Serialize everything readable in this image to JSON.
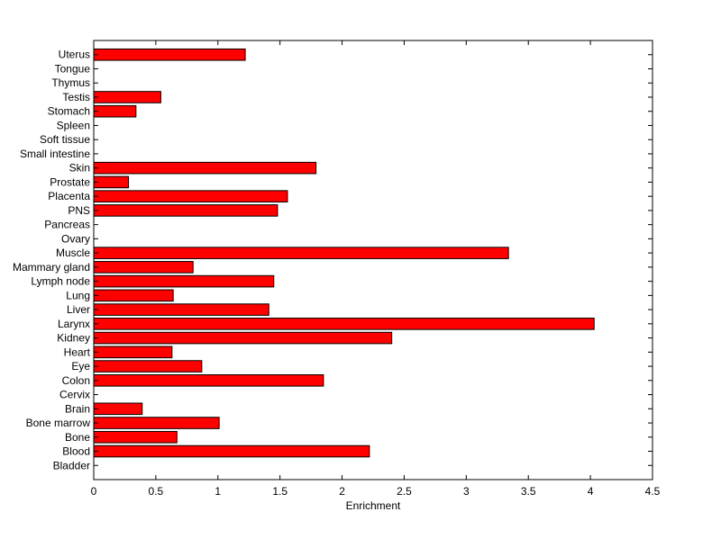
{
  "chart_data": {
    "type": "bar",
    "orientation": "horizontal",
    "title": "",
    "xlabel": "Enrichment",
    "ylabel": "",
    "xlim": [
      0,
      4.5
    ],
    "xticks": [
      "0",
      "0.5",
      "1",
      "1.5",
      "2",
      "2.5",
      "3",
      "3.5",
      "4",
      "4.5"
    ],
    "grid": false,
    "bar_color": "#ff0000",
    "bar_edge_color": "#000000",
    "categories": [
      "Bladder",
      "Blood",
      "Bone",
      "Bone marrow",
      "Brain",
      "Cervix",
      "Colon",
      "Eye",
      "Heart",
      "Kidney",
      "Larynx",
      "Liver",
      "Lung",
      "Lymph node",
      "Mammary gland",
      "Muscle",
      "Ovary",
      "Pancreas",
      "PNS",
      "Placenta",
      "Prostate",
      "Skin",
      "Small intestine",
      "Soft tissue",
      "Spleen",
      "Stomach",
      "Testis",
      "Thymus",
      "Tongue",
      "Uterus"
    ],
    "values": [
      0,
      2.22,
      0.67,
      1.01,
      0.39,
      0,
      1.85,
      0.87,
      0.63,
      2.4,
      4.03,
      1.41,
      0.64,
      1.45,
      0.8,
      3.34,
      0,
      0,
      1.48,
      1.56,
      0.28,
      1.79,
      0,
      0,
      0,
      0.34,
      0.54,
      0,
      0,
      1.22
    ]
  }
}
